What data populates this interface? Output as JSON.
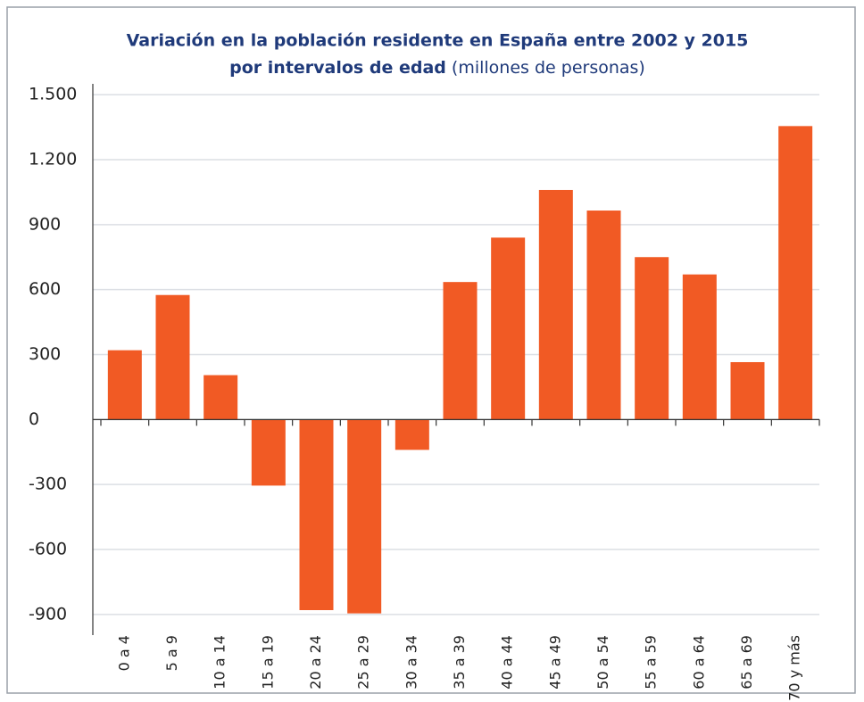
{
  "chart_data": {
    "type": "bar",
    "title_lines": [
      "Variación en la población residente en España entre 2002 y 2015",
      "por intervalos de edad"
    ],
    "title_note": "(millones de personas)",
    "categories": [
      "0 a 4",
      "5 a 9",
      "10 a 14",
      "15 a 19",
      "20 a 24",
      "25 a 29",
      "30 a 34",
      "35 a 39",
      "40 a 44",
      "45 a 49",
      "50 a 54",
      "55 a 59",
      "60 a 64",
      "65 a 69",
      "70 y más"
    ],
    "values": [
      320,
      575,
      205,
      -305,
      -880,
      -895,
      -140,
      635,
      840,
      1060,
      965,
      750,
      670,
      265,
      1355
    ],
    "color": "#f15a24",
    "ylim": [
      -950,
      1550
    ],
    "yticks": [
      -900,
      -600,
      -300,
      0,
      300,
      600,
      900,
      {
        "value": 1200,
        "label": "1.200"
      },
      {
        "value": 1500,
        "label": "1.500"
      }
    ],
    "grid": true
  }
}
